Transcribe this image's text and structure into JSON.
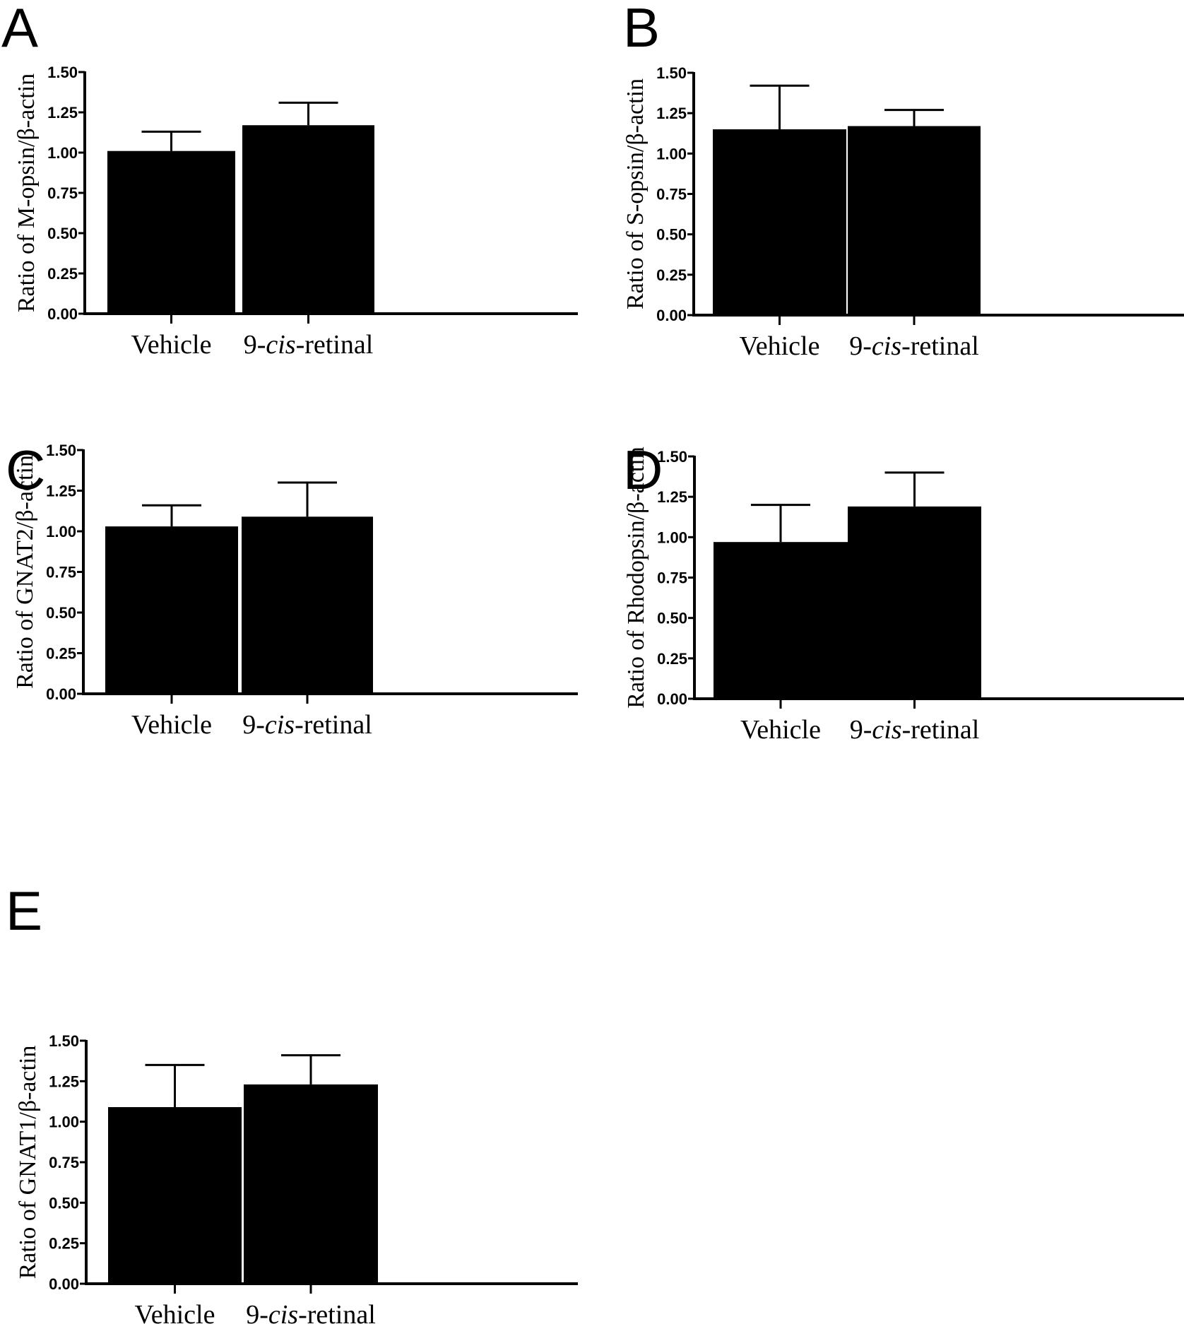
{
  "chart_data": [
    {
      "type": "bar",
      "panel": "A",
      "ylabel": "Ratio of M-opsin/β-actin",
      "categories": [
        "Vehicle",
        "9-cis-retinal"
      ],
      "category_parts": [
        {
          "pre": "Vehicle",
          "it": "",
          "post": ""
        },
        {
          "pre": "9-",
          "it": "cis",
          "post": "-retinal"
        }
      ],
      "values": [
        1.01,
        1.17
      ],
      "error_upper": [
        1.13,
        1.31
      ],
      "ylim": [
        0,
        1.5
      ],
      "yticks": [
        "0.00",
        "0.25",
        "0.50",
        "0.75",
        "1.00",
        "1.25",
        "1.50"
      ],
      "bar_color": "#000000"
    },
    {
      "type": "bar",
      "panel": "B",
      "ylabel": "Ratio of S-opsin/β-actin",
      "categories": [
        "Vehicle",
        "9-cis-retinal"
      ],
      "category_parts": [
        {
          "pre": "Vehicle",
          "it": "",
          "post": ""
        },
        {
          "pre": "9-",
          "it": "cis",
          "post": "-retinal"
        }
      ],
      "values": [
        1.15,
        1.17
      ],
      "error_upper": [
        1.42,
        1.27
      ],
      "ylim": [
        0,
        1.5
      ],
      "yticks": [
        "0.00",
        "0.25",
        "0.50",
        "0.75",
        "1.00",
        "1.25",
        "1.50"
      ],
      "bar_color": "#000000"
    },
    {
      "type": "bar",
      "panel": "C",
      "ylabel": "Ratio of GNAT2/β-actin",
      "categories": [
        "Vehicle",
        "9-cis-retinal"
      ],
      "category_parts": [
        {
          "pre": "Vehicle",
          "it": "",
          "post": ""
        },
        {
          "pre": "9-",
          "it": "cis",
          "post": "-retinal"
        }
      ],
      "values": [
        1.03,
        1.09
      ],
      "error_upper": [
        1.16,
        1.3
      ],
      "ylim": [
        0,
        1.5
      ],
      "yticks": [
        "0.00",
        "0.25",
        "0.50",
        "0.75",
        "1.00",
        "1.25",
        "1.50"
      ],
      "bar_color": "#000000"
    },
    {
      "type": "bar",
      "panel": "D",
      "ylabel": "Ratio of Rhodopsin/β-actin",
      "categories": [
        "Vehicle",
        "9-cis-retinal"
      ],
      "category_parts": [
        {
          "pre": "Vehicle",
          "it": "",
          "post": ""
        },
        {
          "pre": "9-",
          "it": "cis",
          "post": "-retinal"
        }
      ],
      "values": [
        0.97,
        1.19
      ],
      "error_upper": [
        1.2,
        1.4
      ],
      "ylim": [
        0,
        1.5
      ],
      "yticks": [
        "0.00",
        "0.25",
        "0.50",
        "0.75",
        "1.00",
        "1.25",
        "1.50"
      ],
      "bar_color": "#000000"
    },
    {
      "type": "bar",
      "panel": "E",
      "ylabel": "Ratio of GNAT1/β-actin",
      "categories": [
        "Vehicle",
        "9-cis-retinal"
      ],
      "category_parts": [
        {
          "pre": "Vehicle",
          "it": "",
          "post": ""
        },
        {
          "pre": "9-",
          "it": "cis",
          "post": "-retinal"
        }
      ],
      "values": [
        1.09,
        1.23
      ],
      "error_upper": [
        1.35,
        1.41
      ],
      "ylim": [
        0,
        1.5
      ],
      "yticks": [
        "0.00",
        "0.25",
        "0.50",
        "0.75",
        "1.00",
        "1.25",
        "1.50"
      ],
      "bar_color": "#000000"
    }
  ]
}
